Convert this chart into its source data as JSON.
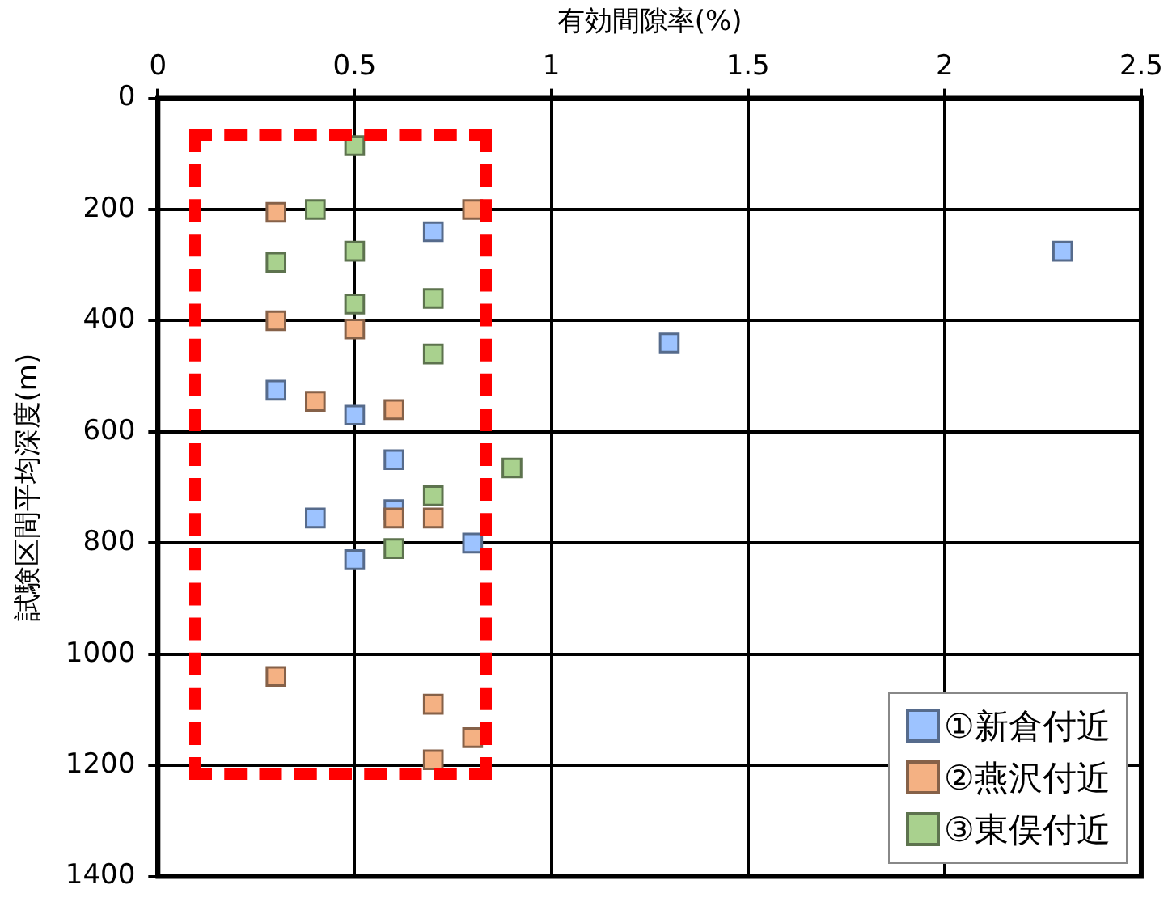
{
  "chart_data": {
    "type": "scatter",
    "xlabel": "有効間隙率(%)",
    "ylabel": "試験区間平均深度(m)",
    "xlim": [
      0,
      2.5
    ],
    "xticks": [
      0,
      0.5,
      1,
      1.5,
      2,
      2.5
    ],
    "ylim": [
      1400,
      0
    ],
    "yticks": [
      0,
      200,
      400,
      600,
      800,
      1000,
      1200,
      1400
    ],
    "grid": true,
    "legend": "bottom right",
    "marker": "square",
    "series": [
      {
        "name": "①新倉付近",
        "color": "#9dc3ff",
        "x": [
          0.7,
          2.3,
          1.3,
          0.3,
          0.5,
          0.6,
          0.6,
          0.4,
          0.8,
          0.5
        ],
        "values": [
          240,
          275,
          440,
          525,
          570,
          650,
          740,
          755,
          800,
          830
        ]
      },
      {
        "name": "②燕沢付近",
        "color": "#f4b183",
        "x": [
          0.3,
          0.8,
          0.3,
          0.5,
          0.4,
          0.6,
          0.6,
          0.7,
          0.3,
          0.7,
          0.8,
          0.7
        ],
        "values": [
          205,
          200,
          400,
          415,
          545,
          560,
          755,
          755,
          1040,
          1090,
          1150,
          1190
        ]
      },
      {
        "name": "③東俣付近",
        "color": "#a9d18e",
        "x": [
          0.5,
          0.4,
          0.5,
          0.3,
          0.5,
          0.7,
          0.7,
          0.9,
          0.7,
          0.6
        ],
        "values": [
          85,
          200,
          275,
          295,
          370,
          360,
          460,
          665,
          715,
          810
        ]
      }
    ]
  }
}
